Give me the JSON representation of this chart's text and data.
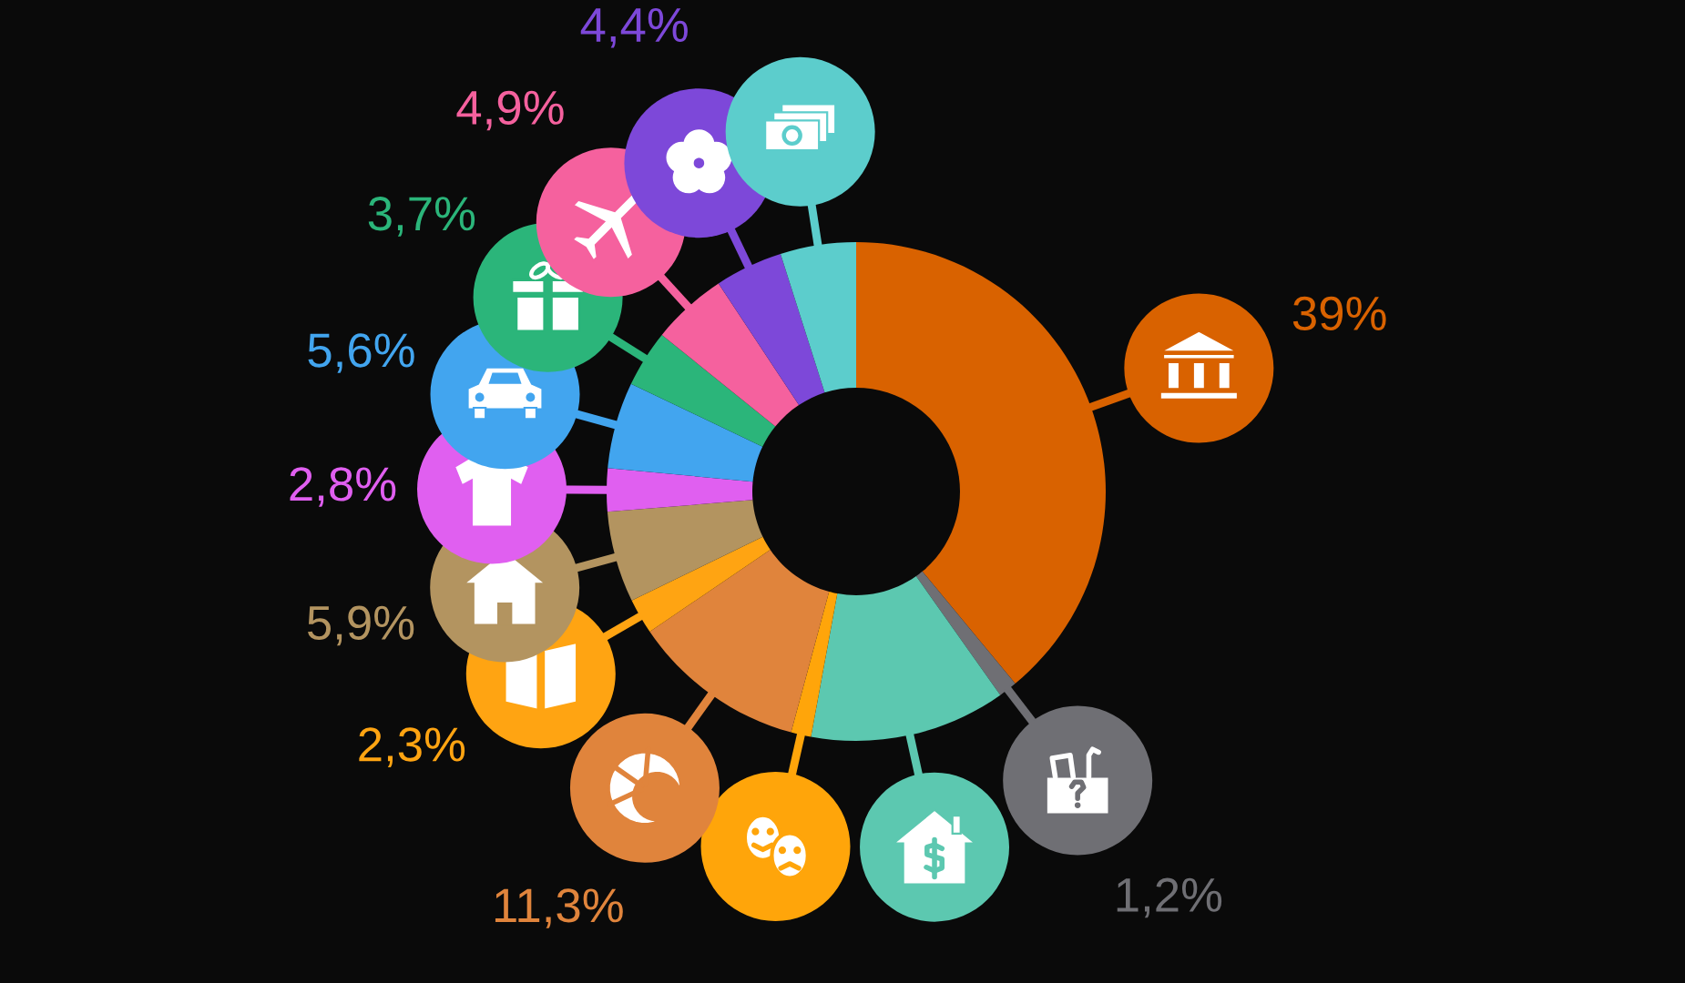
{
  "chart_data": {
    "type": "donut",
    "categories": [
      null,
      null,
      null,
      null,
      null,
      null,
      null,
      null,
      null,
      null,
      null,
      null,
      null
    ],
    "values": [
      39,
      1.2,
      12.7,
      1.3,
      11.3,
      2.3,
      5.9,
      2.8,
      5.6,
      3.7,
      4.9,
      4.4,
      4.9
    ],
    "colors": [
      "#d96200",
      "#6f6f74",
      "#5cc8b0",
      "#ffa50a",
      "#e0843c",
      "#ffa412",
      "#b39460",
      "#e05ff0",
      "#42a5ef",
      "#2bb57a",
      "#f5619e",
      "#7d48d9",
      "#5ccdcc"
    ],
    "value_labels": [
      "39%",
      "1,2%",
      null,
      null,
      "11,3%",
      "2,3%",
      "5,9%",
      "2,8%",
      "5,6%",
      "3,7%",
      "4,9%",
      "4,4%",
      null
    ]
  }
}
